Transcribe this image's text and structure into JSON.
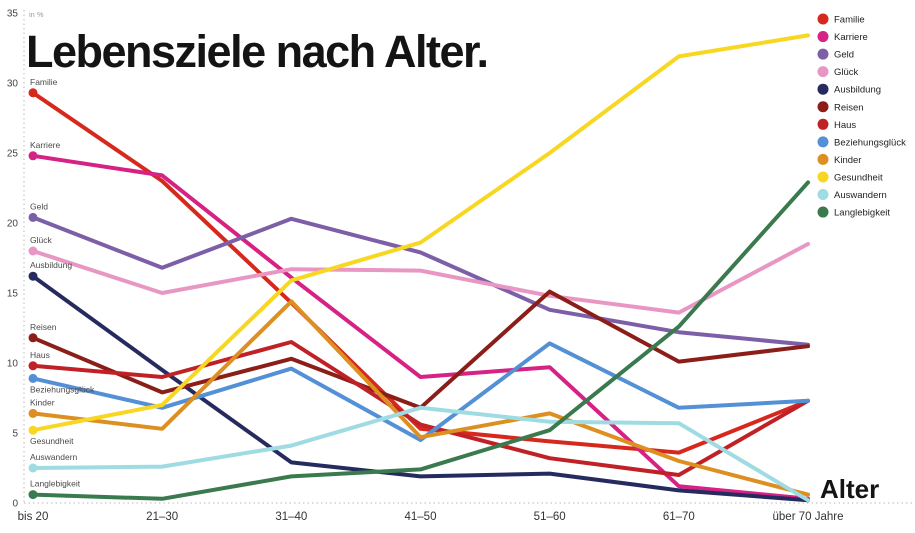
{
  "title": "Lebensziele nach Alter.",
  "x_axis_title": "Alter",
  "axis_unit_label": "in %",
  "chart_data": {
    "type": "line",
    "title": "Lebensziele nach Alter.",
    "xlabel": "Alter",
    "ylabel": "in %",
    "ylim": [
      0,
      35
    ],
    "y_ticks": [
      0,
      5,
      10,
      15,
      20,
      25,
      30,
      35
    ],
    "grid": "dotted left axis and dotted zero baseline only",
    "legend_position": "top-right",
    "categories": [
      "bis 20",
      "21–30",
      "31–40",
      "41–50",
      "51–60",
      "61–70",
      "über 70 Jahre"
    ],
    "series": [
      {
        "name": "Familie",
        "color": "#d7281e",
        "values": [
          29.3,
          23.0,
          14.3,
          5.3,
          4.4,
          3.6,
          7.3
        ]
      },
      {
        "name": "Karriere",
        "color": "#d62284",
        "values": [
          24.8,
          23.4,
          16.1,
          9.0,
          9.7,
          1.2,
          0.3
        ]
      },
      {
        "name": "Geld",
        "color": "#7d5fa8",
        "values": [
          20.4,
          16.8,
          20.3,
          17.9,
          13.8,
          12.2,
          11.3
        ]
      },
      {
        "name": "Glück",
        "color": "#e897c4",
        "values": [
          18.0,
          15.0,
          16.7,
          16.6,
          14.8,
          13.6,
          18.5
        ]
      },
      {
        "name": "Ausbildung",
        "color": "#252b5e",
        "values": [
          16.2,
          9.5,
          2.9,
          1.9,
          2.1,
          0.9,
          0.2
        ]
      },
      {
        "name": "Reisen",
        "color": "#8b1e18",
        "values": [
          11.8,
          7.9,
          10.3,
          6.8,
          15.1,
          10.1,
          11.2
        ]
      },
      {
        "name": "Haus",
        "color": "#c02126",
        "values": [
          9.8,
          9.0,
          11.5,
          5.6,
          3.2,
          2.0,
          7.3
        ]
      },
      {
        "name": "Beziehungsglück",
        "color": "#5490d6",
        "values": [
          8.9,
          6.8,
          9.6,
          4.5,
          11.4,
          6.8,
          7.3
        ]
      },
      {
        "name": "Kinder",
        "color": "#dd8f21",
        "values": [
          6.4,
          5.3,
          14.4,
          4.7,
          6.4,
          3.0,
          0.6
        ]
      },
      {
        "name": "Gesundheit",
        "color": "#f8d722",
        "values": [
          5.2,
          7.0,
          15.9,
          18.6,
          25.0,
          31.9,
          33.4
        ]
      },
      {
        "name": "Auswandern",
        "color": "#9fdbe2",
        "values": [
          2.5,
          2.6,
          4.1,
          6.8,
          5.8,
          5.7,
          0.2
        ]
      },
      {
        "name": "Langlebigkeit",
        "color": "#3a7a4e",
        "values": [
          0.6,
          0.3,
          1.9,
          2.4,
          5.2,
          12.6,
          22.9
        ]
      }
    ]
  }
}
